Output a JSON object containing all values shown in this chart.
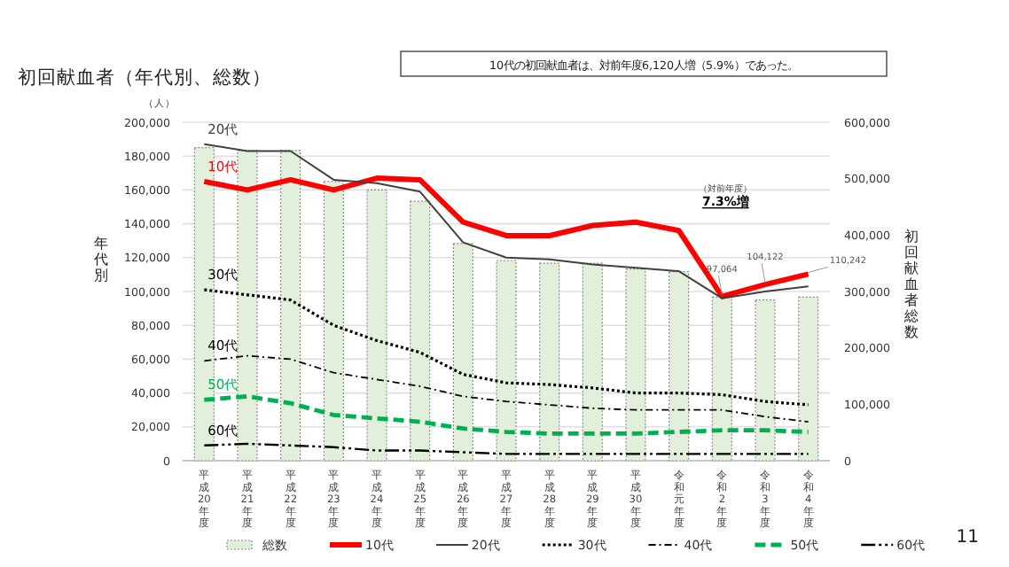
{
  "chart_data": {
    "type": "line",
    "title": "初回献血者（年代別、総数）",
    "subtitle": "10代の初回献血者は、対前年度6,120人増（5.9%）であった。",
    "ylabel": "年代別",
    "y2label": "初回献血者総数",
    "categories": [
      "平成20年度",
      "平成21年度",
      "平成22年度",
      "平成23年度",
      "平成24年度",
      "平成25年度",
      "平成26年度",
      "平成27年度",
      "平成28年度",
      "平成29年度",
      "平成30年度",
      "令和元年度",
      "令和2年度",
      "令和3年度",
      "令和4年度"
    ],
    "series": [
      {
        "name": "総数",
        "type": "bar",
        "axis": "y2",
        "color": "#e2efda",
        "values": [
          555000,
          550000,
          550000,
          495000,
          480000,
          460000,
          385000,
          355000,
          350000,
          350000,
          340000,
          335000,
          290000,
          285000,
          290000
        ]
      },
      {
        "name": "10代",
        "color": "#ff0000",
        "line_style": "solid",
        "values": [
          165000,
          160000,
          166000,
          160000,
          167000,
          166000,
          141000,
          133000,
          133000,
          139000,
          141000,
          136000,
          97064,
          104122,
          110242
        ],
        "value_labels": [
          null,
          null,
          null,
          null,
          null,
          null,
          null,
          null,
          null,
          null,
          null,
          null,
          "97,064",
          "104,122",
          "110,242"
        ]
      },
      {
        "name": "20代",
        "color": "#404040",
        "line_style": "solid",
        "values": [
          187000,
          183000,
          183000,
          166000,
          164000,
          159000,
          129000,
          120000,
          119000,
          116000,
          114000,
          112000,
          96000,
          100000,
          103000
        ]
      },
      {
        "name": "30代",
        "color": "#000000",
        "line_style": "dotted",
        "values": [
          101000,
          98000,
          95000,
          80000,
          71000,
          64000,
          51000,
          46000,
          45000,
          43000,
          40000,
          40000,
          39000,
          35000,
          33000
        ]
      },
      {
        "name": "40代",
        "color": "#000000",
        "line_style": "dashdot",
        "values": [
          59000,
          62000,
          60000,
          52000,
          48000,
          44000,
          38000,
          35000,
          33000,
          31000,
          30000,
          30000,
          30000,
          26000,
          23000
        ]
      },
      {
        "name": "50代",
        "color": "#00b050",
        "line_style": "dashed",
        "values": [
          36000,
          38000,
          34000,
          27000,
          25000,
          23000,
          19000,
          17000,
          16000,
          16000,
          16000,
          17000,
          18000,
          18000,
          17000
        ]
      },
      {
        "name": "60代",
        "color": "#000000",
        "line_style": "longdashdot",
        "values": [
          9000,
          10000,
          9000,
          8000,
          6000,
          6000,
          5000,
          4000,
          4000,
          4000,
          4000,
          4000,
          4000,
          4000,
          4000
        ]
      }
    ],
    "ylim": [
      0,
      200000
    ],
    "yticks": [
      {
        "value": 0,
        "label": "0"
      },
      {
        "value": 20000,
        "label": "20,000"
      },
      {
        "value": 40000,
        "label": "40,000"
      },
      {
        "value": 60000,
        "label": "60,000"
      },
      {
        "value": 80000,
        "label": "80,000"
      },
      {
        "value": 100000,
        "label": "100,000"
      },
      {
        "value": 120000,
        "label": "120,000"
      },
      {
        "value": 140000,
        "label": "140,000"
      },
      {
        "value": 160000,
        "label": "160,000"
      },
      {
        "value": 180000,
        "label": "180,000"
      },
      {
        "value": 200000,
        "label": "200,000"
      }
    ],
    "y2lim": [
      0,
      600000
    ],
    "y2ticks": [
      {
        "value": 0,
        "label": "0"
      },
      {
        "value": 100000,
        "label": "100,000"
      },
      {
        "value": 200000,
        "label": "200,000"
      },
      {
        "value": 300000,
        "label": "300,000"
      },
      {
        "value": 400000,
        "label": "400,000"
      },
      {
        "value": 500000,
        "label": "500,000"
      },
      {
        "value": 600000,
        "label": "600,000"
      }
    ],
    "grid": "y",
    "legend": "bottom",
    "annotations": [
      "（人）",
      "（対前年度）",
      "7.3%増",
      "11"
    ]
  }
}
